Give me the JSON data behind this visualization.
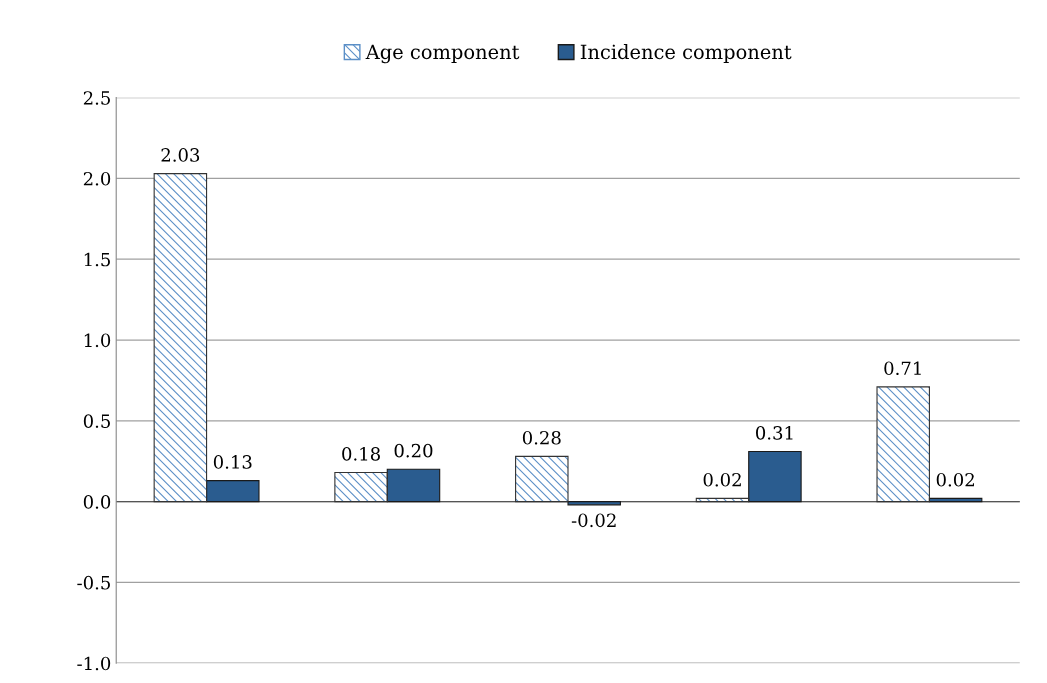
{
  "chart_data": {
    "type": "bar",
    "categories": [
      null,
      null,
      null,
      null,
      null
    ],
    "series": [
      {
        "name": "Age component",
        "color": "#5b8fc7",
        "values": [
          2.03,
          0.18,
          0.28,
          0.02,
          0.71
        ],
        "value_labels": [
          "2.03",
          "0.18",
          "0.28",
          "0.02",
          "0.71"
        ]
      },
      {
        "name": "Incidence component",
        "color": "#2a5c8f",
        "values": [
          0.13,
          0.2,
          -0.02,
          0.31,
          0.02
        ],
        "value_labels": [
          "0.13",
          "0.20",
          "-0.02",
          "0.31",
          "0.02"
        ]
      }
    ],
    "ylim": [
      -1.0,
      2.5
    ],
    "yticks": [
      {
        "value": -1.0,
        "label": "-1.0"
      },
      {
        "value": -0.5,
        "label": "-0.5"
      },
      {
        "value": 0.0,
        "label": "0.0"
      },
      {
        "value": 0.5,
        "label": "0.5"
      },
      {
        "value": 1.0,
        "label": "1.0"
      },
      {
        "value": 1.5,
        "label": "1.5"
      },
      {
        "value": 2.0,
        "label": "2.0"
      },
      {
        "value": 2.5,
        "label": "2.5"
      }
    ],
    "grid": "y",
    "legend": "top"
  }
}
